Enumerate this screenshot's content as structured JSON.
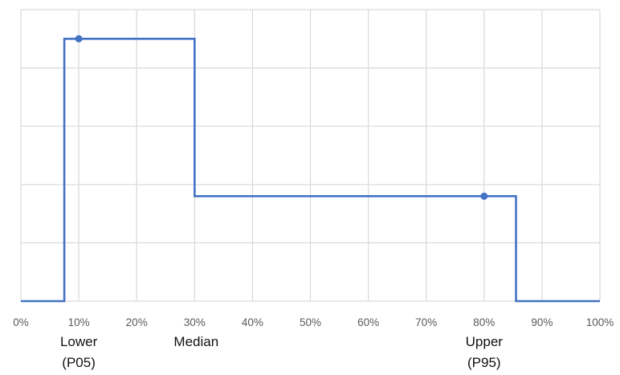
{
  "chart_data": {
    "type": "line",
    "step": true,
    "title": "",
    "xlabel": "",
    "ylabel": "",
    "xlim": [
      0,
      100
    ],
    "ylim": [
      0,
      5
    ],
    "x_ticks": [
      0,
      10,
      20,
      30,
      40,
      50,
      60,
      70,
      80,
      90,
      100
    ],
    "x_tick_labels": [
      "0%",
      "10%",
      "20%",
      "30%",
      "40%",
      "50%",
      "60%",
      "70%",
      "80%",
      "90%",
      "100%"
    ],
    "y_ticks": [
      0,
      1,
      2,
      3,
      4,
      5
    ],
    "y_tick_labels_shown": false,
    "grid": true,
    "legend": "none",
    "series": [
      {
        "color": "#4472c4",
        "x": [
          0,
          7.5,
          7.5,
          30,
          30,
          85.5,
          85.5,
          100
        ],
        "y": [
          0,
          0,
          4.5,
          4.5,
          1.8,
          1.8,
          0,
          0
        ]
      }
    ],
    "markers": [
      {
        "x": 10,
        "y": 4.5,
        "color": "#4472c4"
      },
      {
        "x": 80,
        "y": 1.8,
        "color": "#4472c4"
      }
    ],
    "annotations": [
      {
        "x": 10,
        "lines": [
          "Lower",
          "(P05)"
        ]
      },
      {
        "x": 30,
        "lines": [
          "Median"
        ]
      },
      {
        "x": 80,
        "lines": [
          "Upper",
          "(P95)"
        ]
      }
    ]
  }
}
